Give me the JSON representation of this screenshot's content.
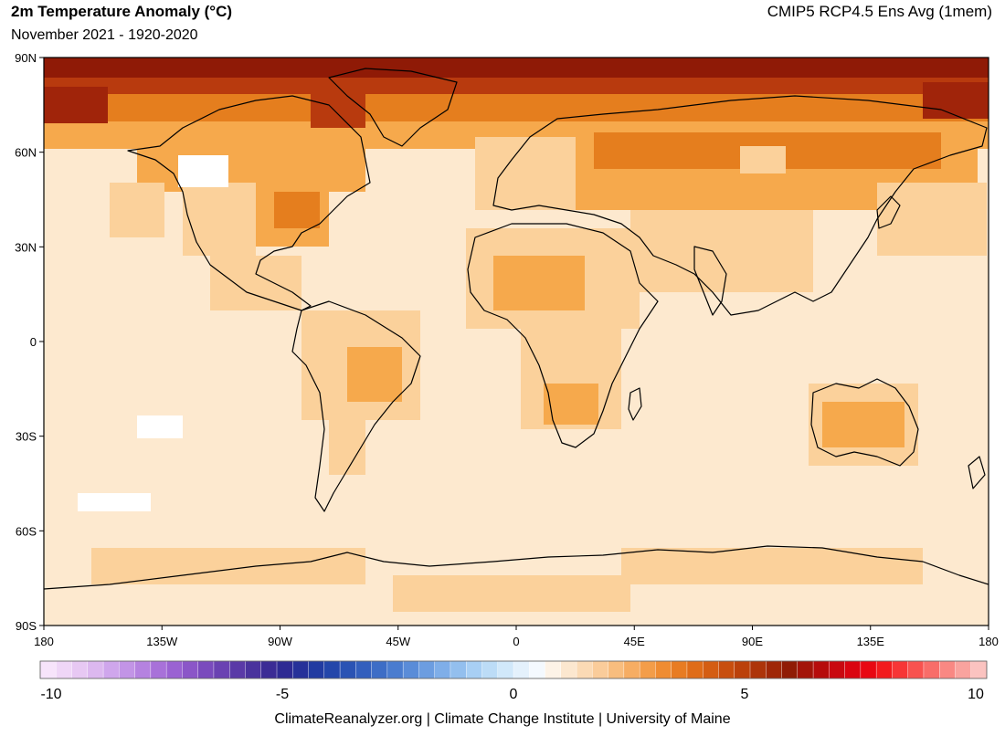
{
  "header": {
    "title": "2m Temperature Anomaly (°C)",
    "subtitle": "November 2021 - 1920-2020",
    "model": "CMIP5 RCP4.5 Ens Avg (1mem)"
  },
  "map": {
    "lat_labels": [
      "90N",
      "60N",
      "30N",
      "0",
      "30S",
      "60S",
      "90S"
    ],
    "lon_labels": [
      "180",
      "135W",
      "90W",
      "45W",
      "0",
      "45E",
      "90E",
      "135E",
      "180"
    ],
    "colors": {
      "background_anomaly": "#fde9cf",
      "warm_light": "#fbd19b",
      "warm_mid": "#f6a94c",
      "warm_strong": "#e57e1e",
      "hot": "#b83a0e",
      "very_hot": "#8f1a06",
      "near_zero": "#ffffff",
      "coast": "#000000"
    }
  },
  "legend": {
    "tick_labels": [
      "-10",
      "-5",
      "0",
      "5",
      "10"
    ],
    "range": [
      -10,
      10
    ],
    "colors": [
      "#f7e4fb",
      "#efd6f7",
      "#e7c8f3",
      "#dcb8ef",
      "#cfa6ec",
      "#c294e6",
      "#b582e0",
      "#a871d9",
      "#9a62d2",
      "#8b56c8",
      "#7a4bbd",
      "#6a42b2",
      "#5a3aa7",
      "#4a339d",
      "#3b2c95",
      "#2e2a93",
      "#263199",
      "#223ba1",
      "#2446aa",
      "#2a53b4",
      "#335fbd",
      "#3d6dc6",
      "#4a7ccf",
      "#5a8cd8",
      "#6c9de0",
      "#7faee8",
      "#93bfee",
      "#a8cff4",
      "#bcdcf7",
      "#d1e8fa",
      "#e4f1fc",
      "#f4f9fe",
      "#fdf3e7",
      "#fce7cf",
      "#fbdab5",
      "#facc9a",
      "#f8bd7e",
      "#f6ad63",
      "#f39d49",
      "#ef8c32",
      "#e87c22",
      "#df6c18",
      "#d45d12",
      "#c84e0e",
      "#bb410b",
      "#ad3409",
      "#9f2707",
      "#901c05",
      "#a31409",
      "#b60c0c",
      "#c9080f",
      "#da0510",
      "#e80812",
      "#f21b1d",
      "#f73536",
      "#f8524f",
      "#f86d69",
      "#f98883",
      "#f9a39e",
      "#fbc3c0"
    ]
  },
  "footer": {
    "credit": "ClimateReanalyzer.org | Climate Change Institute | University of Maine"
  }
}
